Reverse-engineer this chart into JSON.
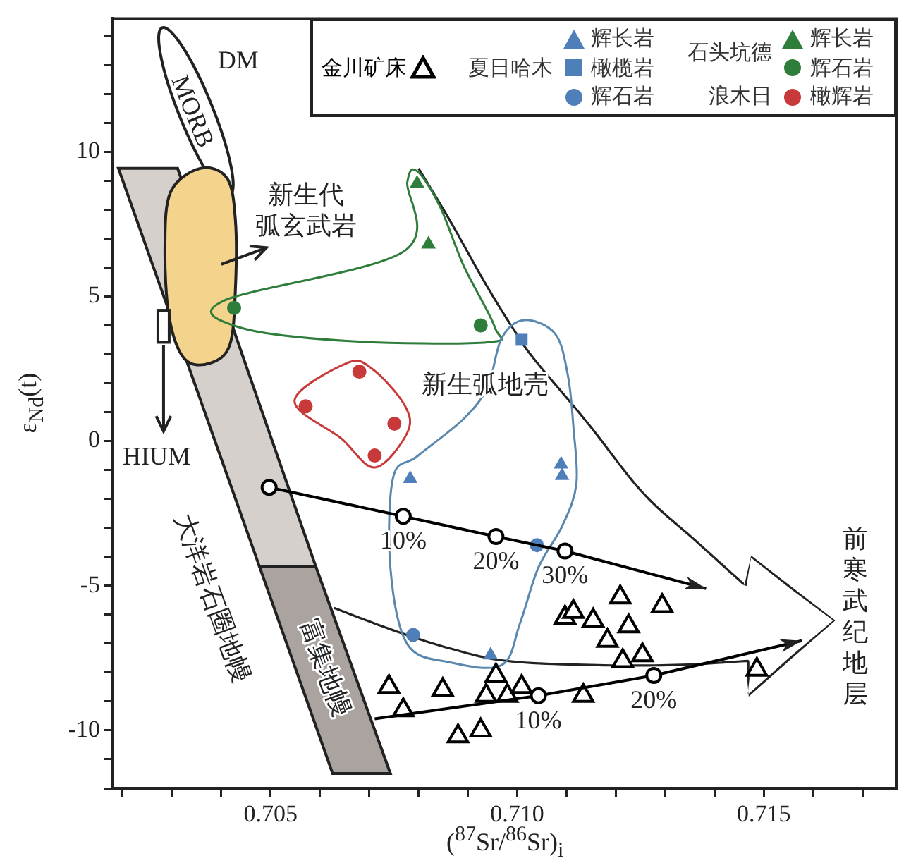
{
  "chart_data": {
    "type": "scatter",
    "xlabel": "($^{87}$Sr/$^{86}$Sr)$_{i}$",
    "ylabel": "ε$_{Nd}$(t)",
    "xlim": [
      0.7018,
      0.7177
    ],
    "ylim": [
      -12,
      14.6
    ],
    "xticks": [
      {
        "value": 0.702,
        "label": null
      },
      {
        "value": 0.703,
        "label": null
      },
      {
        "value": 0.704,
        "label": null
      },
      0.705,
      {
        "value": 0.706,
        "label": null
      },
      {
        "value": 0.707,
        "label": null
      },
      {
        "value": 0.708,
        "label": null
      },
      {
        "value": 0.709,
        "label": null
      },
      {
        "value": 0.71,
        "label": "0.710"
      },
      {
        "value": 0.711,
        "label": null
      },
      {
        "value": 0.712,
        "label": null
      },
      {
        "value": 0.713,
        "label": null
      },
      {
        "value": 0.714,
        "label": null
      },
      0.715,
      {
        "value": 0.716,
        "label": null
      },
      {
        "value": 0.717,
        "label": null
      }
    ],
    "yticks": [
      {
        "value": -12,
        "label": null
      },
      {
        "value": -11,
        "label": null
      },
      -10,
      {
        "value": -9,
        "label": null
      },
      {
        "value": -8,
        "label": null
      },
      {
        "value": -7,
        "label": null
      },
      {
        "value": -6,
        "label": null
      },
      -5,
      {
        "value": -4,
        "label": null
      },
      {
        "value": -3,
        "label": null
      },
      {
        "value": -2,
        "label": null
      },
      {
        "value": -1,
        "label": null
      },
      0,
      {
        "value": 1,
        "label": null
      },
      {
        "value": 2,
        "label": null
      },
      {
        "value": 3,
        "label": null
      },
      {
        "value": 4,
        "label": null
      },
      5,
      {
        "value": 6,
        "label": null
      },
      {
        "value": 7,
        "label": null
      },
      {
        "value": 8,
        "label": null
      },
      {
        "value": 9,
        "label": null
      },
      10,
      {
        "value": 11,
        "label": null
      },
      {
        "value": 12,
        "label": null
      },
      {
        "value": 13,
        "label": null
      },
      {
        "value": 14,
        "label": null
      }
    ],
    "grid": false,
    "legend": "top right",
    "series": [
      {
        "name": "金川矿床",
        "color": "#000000",
        "marker": "triangle-open",
        "x": [
          0.7074,
          0.70769,
          0.70849,
          0.7088,
          0.70926,
          0.70957,
          0.70937,
          0.7098,
          0.71009,
          0.71134,
          0.71097,
          0.71114,
          0.71154,
          0.71209,
          0.71294,
          0.71226,
          0.71183,
          0.71254,
          0.71214,
          0.71486
        ],
        "values": [
          -8.5,
          -9.3,
          -8.6,
          -10.2,
          -10.0,
          -8.1,
          -8.8,
          -8.8,
          -8.5,
          -8.8,
          -6.1,
          -5.9,
          -6.2,
          -5.4,
          -5.7,
          -6.4,
          -6.9,
          -7.4,
          -7.6,
          -7.9
        ]
      },
      {
        "name": "辉长岩",
        "color": "#4f7fb8",
        "marker": "triangle",
        "x": [
          0.70783,
          0.71089,
          0.71091,
          0.70946
        ],
        "values": [
          -1.3,
          -0.8,
          -1.2,
          -7.4
        ]
      },
      {
        "name": "橄榄岩",
        "color": "#4f7fb8",
        "marker": "square",
        "x": [
          0.71009
        ],
        "values": [
          3.5
        ]
      },
      {
        "name": "辉石岩",
        "color": "#4f7fb8",
        "marker": "circle",
        "x": [
          0.7104,
          0.70789
        ],
        "values": [
          -3.6,
          -6.7
        ]
      },
      {
        "name": "辉长岩",
        "color": "#2f7d3b",
        "marker": "triangle",
        "x": [
          0.70797,
          0.7082
        ],
        "values": [
          8.9,
          6.8
        ]
      },
      {
        "name": "辉石岩",
        "color": "#2f7d3b",
        "marker": "circle",
        "x": [
          0.70426,
          0.70926
        ],
        "values": [
          4.6,
          4.0
        ]
      },
      {
        "name": "橄辉岩",
        "color": "#c83a3a",
        "marker": "circle",
        "x": [
          0.7068,
          0.70571,
          0.70751,
          0.70711
        ],
        "values": [
          2.4,
          1.2,
          0.6,
          -0.5
        ]
      },
      {
        "type": "line",
        "color": "#000000",
        "marker": "none",
        "x": [
          0.70497,
          0.70769,
          0.70957,
          0.71097,
          0.71383
        ],
        "values": [
          -1.6,
          -2.6,
          -3.3,
          -3.8,
          -5.1
        ]
      },
      {
        "color": "#000000",
        "marker": "circle-open",
        "x": [
          0.70497,
          0.70769,
          0.70957,
          0.71097
        ],
        "values": [
          -1.6,
          -2.6,
          -3.3,
          -3.8
        ]
      },
      {
        "type": "line",
        "color": "#000000",
        "marker": "none",
        "x": [
          0.70711,
          0.71043,
          0.71277,
          0.71577
        ],
        "values": [
          -9.6,
          -8.8,
          -8.1,
          -6.9
        ]
      },
      {
        "color": "#000000",
        "marker": "circle-open",
        "x": [
          0.71043,
          0.71277
        ],
        "values": [
          -8.8,
          -8.1
        ]
      }
    ],
    "annotations": [
      "夏日哈木",
      "石头坑德",
      "浪木日",
      "DM",
      "MORB",
      "新生代弧玄武岩",
      "HIUM",
      "大洋岩石圈地幔",
      "富集地幔",
      "新生弧地壳",
      "前寒武纪地层",
      {
        "text": "10%",
        "x": 0.70769,
        "y": -2.6
      },
      {
        "text": "20%",
        "x": 0.70957,
        "y": -3.3
      },
      {
        "text": "30%",
        "x": 0.71097,
        "y": -3.8
      },
      {
        "text": "10%",
        "x": 0.71043,
        "y": -8.8
      },
      {
        "text": "20%",
        "x": 0.71277,
        "y": -8.1
      }
    ]
  }
}
